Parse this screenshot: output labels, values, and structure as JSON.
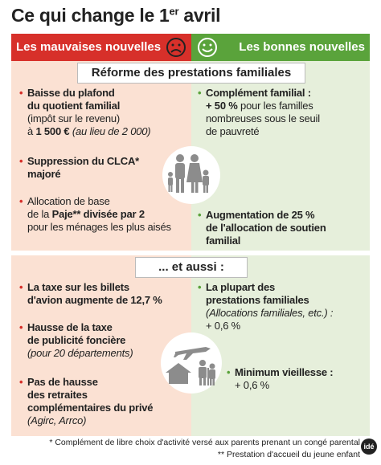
{
  "title": [
    "Ce qui change le 1",
    "er",
    " avril"
  ],
  "header": {
    "left": "Les mauvaises nouvelles",
    "right": "Les bonnes nouvelles"
  },
  "sections": [
    {
      "heading": "Réforme des prestations familiales",
      "left": [
        [
          "Baisse du plafond",
          "du quotient familial",
          "(impôt sur le revenu)",
          "à ",
          "1 500 €",
          " (au lieu de 2 000)"
        ],
        [
          "Suppression du CLCA*",
          "majoré"
        ],
        [
          "Allocation de base",
          "de la ",
          "Paje** divisée par 2",
          "pour les ménages les plus aisés"
        ]
      ],
      "right": [
        [
          "Complément familial :",
          "+ 50 %",
          " pour les familles",
          "nombreuses sous le seuil",
          "de pauvreté"
        ],
        [
          "Augmentation de 25 %",
          "de l'allocation de soutien",
          "familial"
        ]
      ]
    },
    {
      "heading": "... et aussi :",
      "left": [
        [
          "La taxe sur les billets",
          "d'avion augmente de 12,7 %"
        ],
        [
          "Hausse de la taxe",
          "de publicité foncière",
          "(pour 20 départements)"
        ],
        [
          "Pas de hausse",
          "des retraites",
          "complémentaires du privé",
          "(Agirc, Arrco)"
        ]
      ],
      "right": [
        [
          "La plupart des",
          "prestations familiales",
          "(Allocations familiales, etc.) :",
          "+ 0,6 %"
        ],
        [
          "Minimum vieillesse :",
          "+ 0,6 %"
        ]
      ]
    }
  ],
  "footnotes": [
    "* Complément de libre choix d'activité versé aux parents prenant un congé parental",
    "** Prestation d'accueil du jeune enfant"
  ],
  "logo": "idé"
}
